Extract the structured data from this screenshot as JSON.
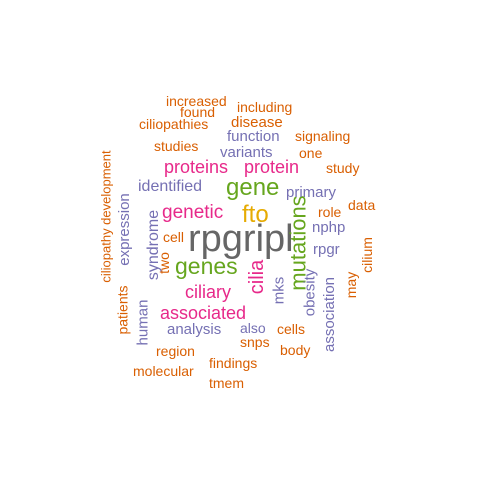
{
  "colors": {
    "orange": "#d95f02",
    "purple": "#7570b3",
    "magenta": "#e7298a",
    "green": "#66a61e",
    "gold": "#e6ab02",
    "gray": "#666666"
  },
  "words": [
    {
      "text": "rpgripl",
      "color": "gray",
      "rotated": false
    },
    {
      "text": "fto",
      "color": "gold",
      "rotated": false
    },
    {
      "text": "gene",
      "color": "green",
      "rotated": false
    },
    {
      "text": "genes",
      "color": "green",
      "rotated": false
    },
    {
      "text": "mutations",
      "color": "green",
      "rotated": true
    },
    {
      "text": "cilia",
      "color": "magenta",
      "rotated": true
    },
    {
      "text": "genetic",
      "color": "magenta",
      "rotated": false
    },
    {
      "text": "proteins",
      "color": "magenta",
      "rotated": false
    },
    {
      "text": "protein",
      "color": "magenta",
      "rotated": false
    },
    {
      "text": "ciliary",
      "color": "magenta",
      "rotated": false
    },
    {
      "text": "associated",
      "color": "magenta",
      "rotated": false
    },
    {
      "text": "identified",
      "color": "purple",
      "rotated": false
    },
    {
      "text": "syndrome",
      "color": "purple",
      "rotated": true
    },
    {
      "text": "expression",
      "color": "purple",
      "rotated": true
    },
    {
      "text": "human",
      "color": "purple",
      "rotated": true
    },
    {
      "text": "primary",
      "color": "purple",
      "rotated": false
    },
    {
      "text": "nphp",
      "color": "purple",
      "rotated": false
    },
    {
      "text": "rpgr",
      "color": "purple",
      "rotated": false
    },
    {
      "text": "mks",
      "color": "purple",
      "rotated": true
    },
    {
      "text": "obesity",
      "color": "purple",
      "rotated": true
    },
    {
      "text": "association",
      "color": "purple",
      "rotated": true
    },
    {
      "text": "analysis",
      "color": "purple",
      "rotated": false
    },
    {
      "text": "also",
      "color": "purple",
      "rotated": false
    },
    {
      "text": "variants",
      "color": "purple",
      "rotated": false
    },
    {
      "text": "function",
      "color": "purple",
      "rotated": false
    },
    {
      "text": "role",
      "color": "orange",
      "rotated": false
    },
    {
      "text": "data",
      "color": "orange",
      "rotated": false
    },
    {
      "text": "cilium",
      "color": "orange",
      "rotated": true
    },
    {
      "text": "may",
      "color": "orange",
      "rotated": true
    },
    {
      "text": "cell",
      "color": "orange",
      "rotated": false
    },
    {
      "text": "two",
      "color": "orange",
      "rotated": true
    },
    {
      "text": "patients",
      "color": "orange",
      "rotated": true
    },
    {
      "text": "ciliopathy development",
      "color": "orange",
      "rotated": true
    },
    {
      "text": "increased",
      "color": "orange",
      "rotated": false
    },
    {
      "text": "including",
      "color": "orange",
      "rotated": false
    },
    {
      "text": "found",
      "color": "orange",
      "rotated": false
    },
    {
      "text": "ciliopathies",
      "color": "orange",
      "rotated": false
    },
    {
      "text": "disease",
      "color": "orange",
      "rotated": false
    },
    {
      "text": "signaling",
      "color": "orange",
      "rotated": false
    },
    {
      "text": "studies",
      "color": "orange",
      "rotated": false
    },
    {
      "text": "one",
      "color": "orange",
      "rotated": false
    },
    {
      "text": "study",
      "color": "orange",
      "rotated": false
    },
    {
      "text": "cells",
      "color": "orange",
      "rotated": false
    },
    {
      "text": "snps",
      "color": "orange",
      "rotated": false
    },
    {
      "text": "body",
      "color": "orange",
      "rotated": false
    },
    {
      "text": "region",
      "color": "orange",
      "rotated": false
    },
    {
      "text": "findings",
      "color": "orange",
      "rotated": false
    },
    {
      "text": "molecular",
      "color": "orange",
      "rotated": false
    },
    {
      "text": "tmem",
      "color": "orange",
      "rotated": false
    }
  ]
}
